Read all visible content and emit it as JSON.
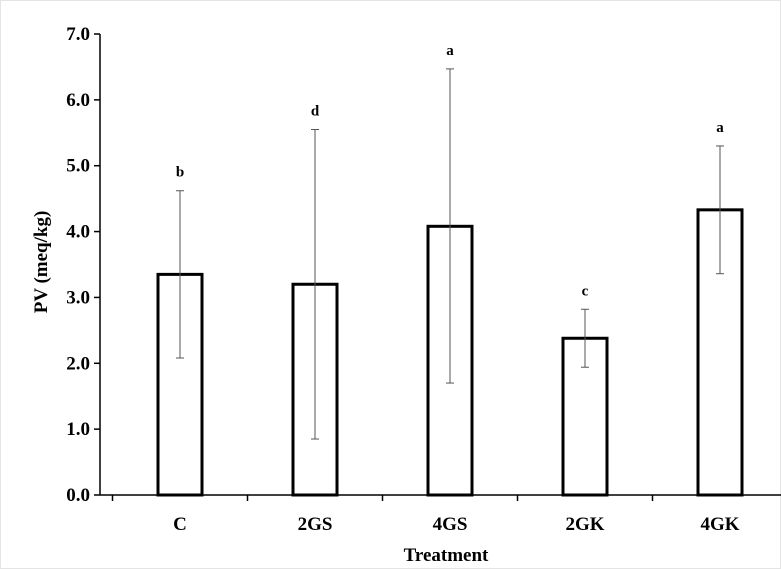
{
  "chart_data": {
    "type": "bar",
    "xlabel": "Treatment",
    "ylabel": "PV (meq/kg)",
    "ylim": [
      0,
      7
    ],
    "y_ticks": [
      "0.0",
      "1.0",
      "2.0",
      "3.0",
      "4.0",
      "5.0",
      "6.0",
      "7.0"
    ],
    "grid": false,
    "legend": "none",
    "categories": [
      "C",
      "2GS",
      "4GS",
      "2GK",
      "4GK"
    ],
    "values": [
      3.35,
      3.2,
      4.08,
      2.38,
      4.33
    ],
    "error_low": [
      2.08,
      0.85,
      1.7,
      1.94,
      3.36
    ],
    "error_high": [
      4.62,
      5.55,
      6.47,
      2.82,
      5.3
    ],
    "significance_labels": [
      "b",
      "d",
      "a",
      "c",
      "a"
    ],
    "colors": {
      "bar_fill": "#ffffff",
      "bar_stroke": "#000000",
      "error_bar": "#555555",
      "axis": "#000000"
    }
  }
}
